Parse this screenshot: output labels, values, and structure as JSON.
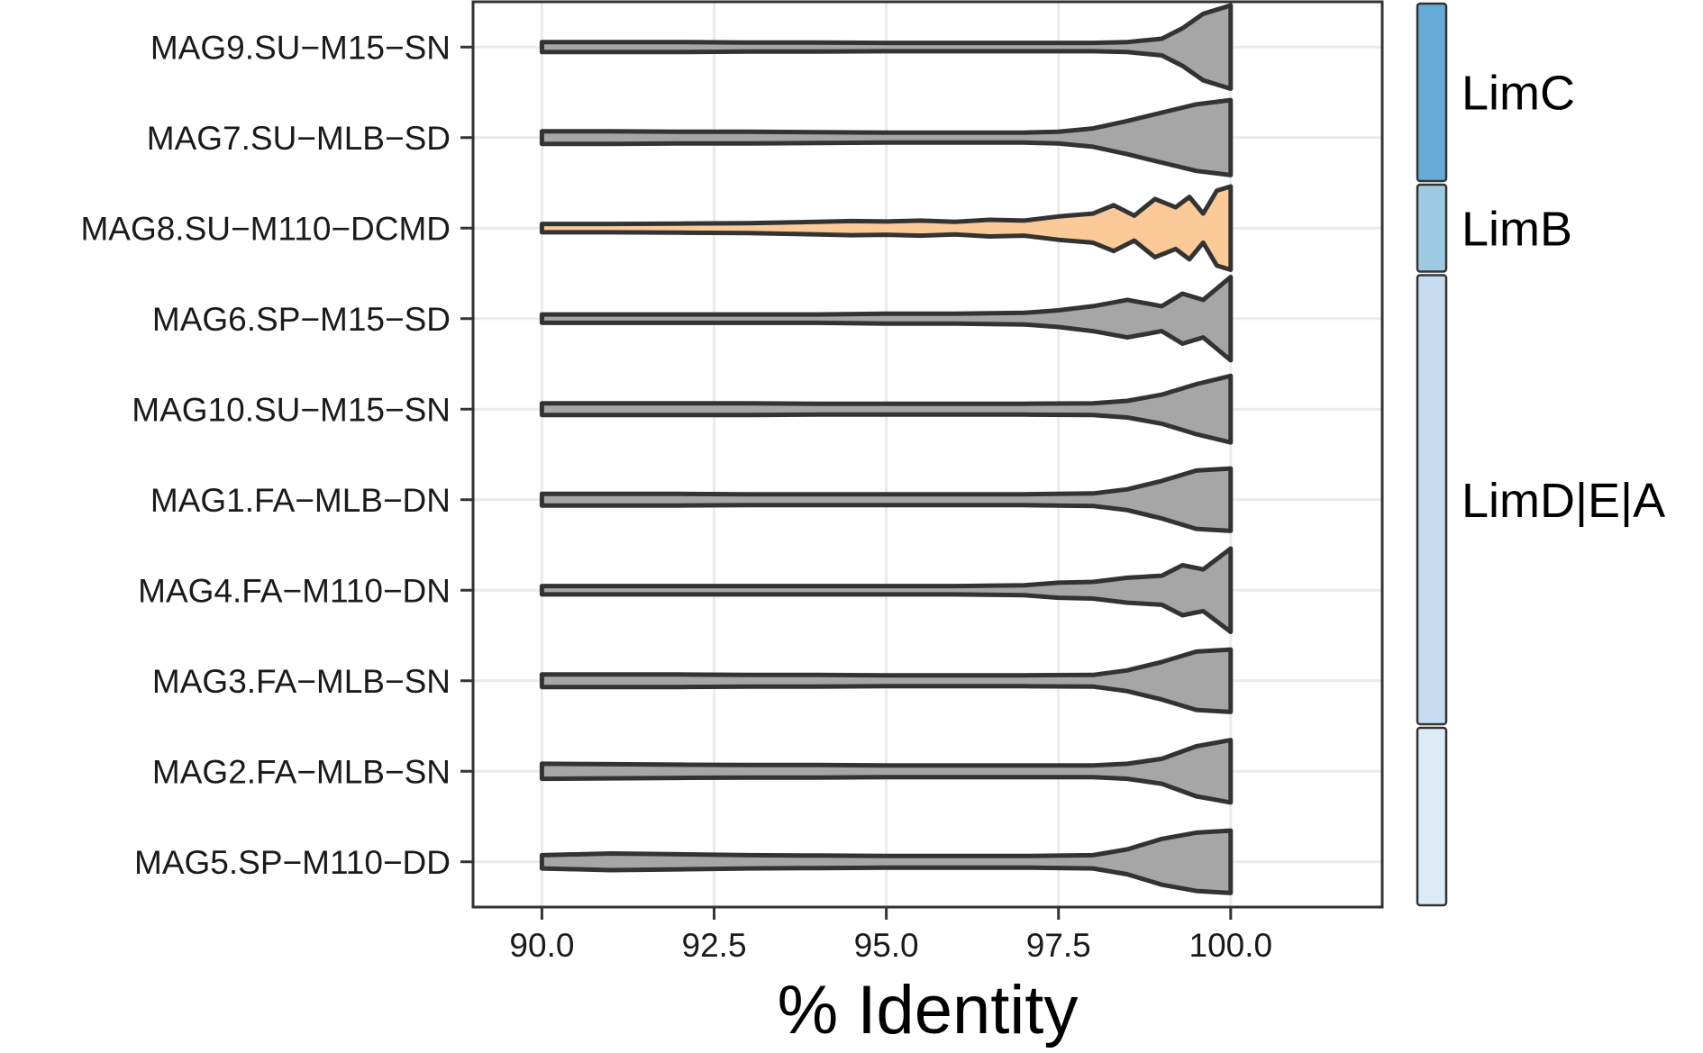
{
  "chart_data": {
    "type": "violin",
    "xlabel": "% Identity",
    "ylabel": "",
    "title": "",
    "xlim": [
      89.0,
      102.2
    ],
    "xticks": [
      "90.0",
      "92.5",
      "95.0",
      "97.5",
      "100.0"
    ],
    "xtick_values": [
      90.0,
      92.5,
      95.0,
      97.5,
      100.0
    ],
    "grid": true,
    "categories": [
      "MAG9.SU−M15−SN",
      "MAG7.SU−MLB−SD",
      "MAG8.SU−M110−DCMD",
      "MAG6.SP−M15−SD",
      "MAG10.SU−M15−SN",
      "MAG1.FA−MLB−DN",
      "MAG4.FA−M110−DN",
      "MAG3.FA−MLB−SN",
      "MAG2.FA−MLB−SN",
      "MAG5.SP−M110−DD"
    ],
    "range": [
      90.0,
      100.0
    ],
    "series": [
      {
        "fill": "#a6a6a6",
        "density": [
          [
            90,
            0.12
          ],
          [
            91,
            0.12
          ],
          [
            92,
            0.12
          ],
          [
            93,
            0.11
          ],
          [
            94,
            0.11
          ],
          [
            95,
            0.1
          ],
          [
            96,
            0.1
          ],
          [
            97,
            0.1
          ],
          [
            98,
            0.1
          ],
          [
            98.5,
            0.12
          ],
          [
            99,
            0.2
          ],
          [
            99.3,
            0.45
          ],
          [
            99.6,
            0.8
          ],
          [
            100,
            1.0
          ]
        ]
      },
      {
        "fill": "#a6a6a6",
        "density": [
          [
            90,
            0.15
          ],
          [
            91,
            0.15
          ],
          [
            92,
            0.14
          ],
          [
            93,
            0.14
          ],
          [
            94,
            0.13
          ],
          [
            95,
            0.12
          ],
          [
            96,
            0.12
          ],
          [
            97,
            0.12
          ],
          [
            97.5,
            0.14
          ],
          [
            98,
            0.22
          ],
          [
            98.5,
            0.4
          ],
          [
            99,
            0.6
          ],
          [
            99.5,
            0.8
          ],
          [
            100,
            0.9
          ]
        ]
      },
      {
        "fill": "#fcca98",
        "density": [
          [
            90,
            0.1
          ],
          [
            91,
            0.1
          ],
          [
            92,
            0.11
          ],
          [
            93,
            0.12
          ],
          [
            94,
            0.15
          ],
          [
            94.5,
            0.17
          ],
          [
            95,
            0.16
          ],
          [
            95.5,
            0.18
          ],
          [
            96,
            0.15
          ],
          [
            96.5,
            0.2
          ],
          [
            97,
            0.18
          ],
          [
            97.5,
            0.28
          ],
          [
            98,
            0.35
          ],
          [
            98.3,
            0.55
          ],
          [
            98.6,
            0.3
          ],
          [
            98.9,
            0.7
          ],
          [
            99.2,
            0.5
          ],
          [
            99.4,
            0.75
          ],
          [
            99.6,
            0.35
          ],
          [
            99.8,
            0.9
          ],
          [
            100,
            1.0
          ]
        ]
      },
      {
        "fill": "#a6a6a6",
        "density": [
          [
            90,
            0.1
          ],
          [
            91,
            0.1
          ],
          [
            92,
            0.1
          ],
          [
            93,
            0.1
          ],
          [
            94,
            0.1
          ],
          [
            95,
            0.12
          ],
          [
            96,
            0.12
          ],
          [
            97,
            0.14
          ],
          [
            97.5,
            0.2
          ],
          [
            98,
            0.3
          ],
          [
            98.5,
            0.45
          ],
          [
            99,
            0.3
          ],
          [
            99.3,
            0.6
          ],
          [
            99.6,
            0.45
          ],
          [
            100,
            1.0
          ]
        ]
      },
      {
        "fill": "#a6a6a6",
        "density": [
          [
            90,
            0.14
          ],
          [
            91,
            0.14
          ],
          [
            92,
            0.14
          ],
          [
            93,
            0.14
          ],
          [
            94,
            0.13
          ],
          [
            95,
            0.13
          ],
          [
            96,
            0.13
          ],
          [
            97,
            0.13
          ],
          [
            98,
            0.14
          ],
          [
            98.5,
            0.2
          ],
          [
            99,
            0.35
          ],
          [
            99.5,
            0.6
          ],
          [
            100,
            0.8
          ]
        ]
      },
      {
        "fill": "#a6a6a6",
        "density": [
          [
            90,
            0.14
          ],
          [
            91,
            0.14
          ],
          [
            92,
            0.14
          ],
          [
            93,
            0.13
          ],
          [
            94,
            0.13
          ],
          [
            95,
            0.13
          ],
          [
            96,
            0.13
          ],
          [
            97,
            0.13
          ],
          [
            98,
            0.15
          ],
          [
            98.5,
            0.25
          ],
          [
            99,
            0.45
          ],
          [
            99.5,
            0.7
          ],
          [
            100,
            0.75
          ]
        ]
      },
      {
        "fill": "#a6a6a6",
        "density": [
          [
            90,
            0.1
          ],
          [
            91,
            0.1
          ],
          [
            92,
            0.1
          ],
          [
            93,
            0.1
          ],
          [
            94,
            0.1
          ],
          [
            95,
            0.1
          ],
          [
            96,
            0.1
          ],
          [
            97,
            0.12
          ],
          [
            97.5,
            0.18
          ],
          [
            98,
            0.2
          ],
          [
            98.5,
            0.3
          ],
          [
            99,
            0.35
          ],
          [
            99.3,
            0.6
          ],
          [
            99.6,
            0.5
          ],
          [
            100,
            1.0
          ]
        ]
      },
      {
        "fill": "#a6a6a6",
        "density": [
          [
            90,
            0.15
          ],
          [
            91,
            0.15
          ],
          [
            92,
            0.15
          ],
          [
            93,
            0.14
          ],
          [
            94,
            0.14
          ],
          [
            95,
            0.13
          ],
          [
            96,
            0.13
          ],
          [
            97,
            0.13
          ],
          [
            98,
            0.14
          ],
          [
            98.5,
            0.25
          ],
          [
            99,
            0.45
          ],
          [
            99.5,
            0.7
          ],
          [
            100,
            0.75
          ]
        ]
      },
      {
        "fill": "#a6a6a6",
        "density": [
          [
            90,
            0.18
          ],
          [
            91,
            0.17
          ],
          [
            92,
            0.16
          ],
          [
            93,
            0.15
          ],
          [
            94,
            0.15
          ],
          [
            95,
            0.14
          ],
          [
            96,
            0.14
          ],
          [
            97,
            0.14
          ],
          [
            98,
            0.14
          ],
          [
            98.5,
            0.18
          ],
          [
            99,
            0.3
          ],
          [
            99.5,
            0.6
          ],
          [
            100,
            0.75
          ]
        ]
      },
      {
        "fill": "#a6a6a6",
        "density": [
          [
            90,
            0.16
          ],
          [
            91,
            0.2
          ],
          [
            92,
            0.18
          ],
          [
            93,
            0.16
          ],
          [
            94,
            0.15
          ],
          [
            95,
            0.14
          ],
          [
            96,
            0.14
          ],
          [
            97,
            0.14
          ],
          [
            98,
            0.16
          ],
          [
            98.5,
            0.3
          ],
          [
            99,
            0.55
          ],
          [
            99.5,
            0.7
          ],
          [
            100,
            0.75
          ]
        ]
      }
    ],
    "groups": [
      {
        "label": "LimC",
        "color": "#66abd6",
        "rows": [
          0,
          1
        ]
      },
      {
        "label": "LimB",
        "color": "#9ecae1",
        "rows": [
          2,
          2
        ]
      },
      {
        "label": "LimD|E|A",
        "color": "#c6dbef",
        "rows": [
          3,
          7
        ]
      },
      {
        "label": "",
        "color": "#deebf7",
        "rows": [
          8,
          9
        ]
      }
    ]
  }
}
